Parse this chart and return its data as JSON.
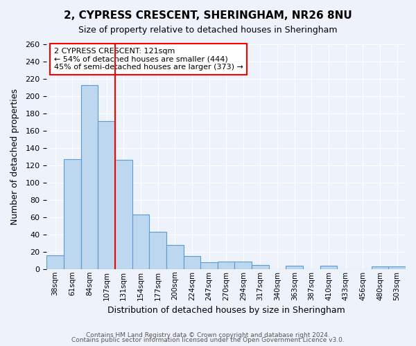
{
  "title": "2, CYPRESS CRESCENT, SHERINGHAM, NR26 8NU",
  "subtitle": "Size of property relative to detached houses in Sheringham",
  "xlabel": "Distribution of detached houses by size in Sheringham",
  "ylabel": "Number of detached properties",
  "bar_color": "#bdd7ee",
  "bar_edge_color": "#5b9bd5",
  "background_color": "#eef2fa",
  "grid_color": "#ffffff",
  "categories": [
    "38sqm",
    "61sqm",
    "84sqm",
    "107sqm",
    "131sqm",
    "154sqm",
    "177sqm",
    "200sqm",
    "224sqm",
    "247sqm",
    "270sqm",
    "294sqm",
    "317sqm",
    "340sqm",
    "363sqm",
    "387sqm",
    "410sqm",
    "433sqm",
    "456sqm",
    "480sqm",
    "503sqm"
  ],
  "values": [
    16,
    127,
    213,
    171,
    126,
    63,
    43,
    28,
    15,
    8,
    9,
    9,
    5,
    0,
    4,
    0,
    4,
    0,
    0,
    3,
    3
  ],
  "ylim": [
    0,
    260
  ],
  "yticks": [
    0,
    20,
    40,
    60,
    80,
    100,
    120,
    140,
    160,
    180,
    200,
    220,
    240,
    260
  ],
  "property_line_x": 3.5,
  "annotation_title": "2 CYPRESS CRESCENT: 121sqm",
  "annotation_line1": "← 54% of detached houses are smaller (444)",
  "annotation_line2": "45% of semi-detached houses are larger (373) →",
  "footer1": "Contains HM Land Registry data © Crown copyright and database right 2024.",
  "footer2": "Contains public sector information licensed under the Open Government Licence v3.0."
}
